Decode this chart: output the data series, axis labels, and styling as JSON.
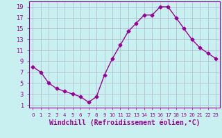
{
  "x": [
    0,
    1,
    2,
    3,
    4,
    5,
    6,
    7,
    8,
    9,
    10,
    11,
    12,
    13,
    14,
    15,
    16,
    17,
    18,
    19,
    20,
    21,
    22,
    23
  ],
  "y": [
    8,
    7,
    5,
    4,
    3.5,
    3,
    2.5,
    1.5,
    2.5,
    6.5,
    9.5,
    12,
    14.5,
    16,
    17.5,
    17.5,
    19,
    19,
    17,
    15,
    13,
    11.5,
    10.5,
    9.5
  ],
  "line_color": "#990099",
  "marker": "D",
  "markersize": 2.5,
  "linewidth": 1.0,
  "xlabel": "Windchill (Refroidissement éolien,°C)",
  "xlabel_fontsize": 7,
  "xlim": [
    -0.5,
    23.5
  ],
  "ylim": [
    0.5,
    20
  ],
  "yticks": [
    1,
    3,
    5,
    7,
    9,
    11,
    13,
    15,
    17,
    19
  ],
  "xtick_labels": [
    "0",
    "1",
    "2",
    "3",
    "4",
    "5",
    "6",
    "7",
    "8",
    "9",
    "10",
    "11",
    "12",
    "13",
    "14",
    "15",
    "16",
    "17",
    "18",
    "19",
    "20",
    "21",
    "22",
    "23"
  ],
  "bg_color": "#c8f0f0",
  "grid_color": "#b0b8cc",
  "tick_color": "#990099",
  "label_color": "#990099",
  "axis_color": "#990099"
}
